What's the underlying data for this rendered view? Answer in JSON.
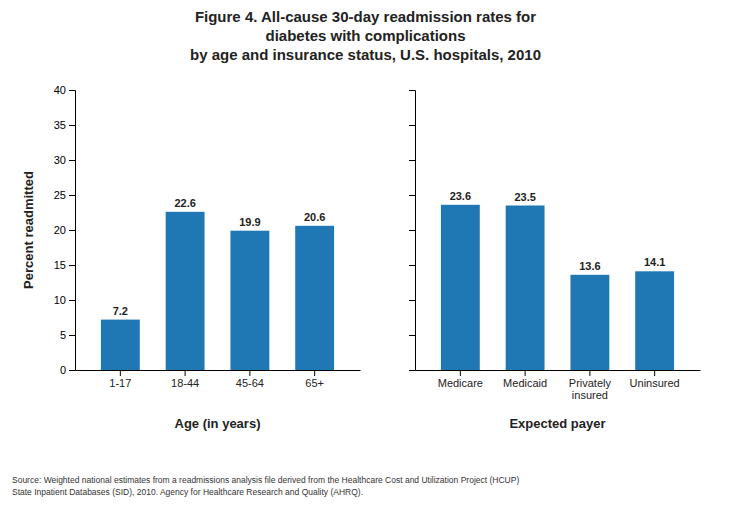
{
  "chart_data": [
    {
      "type": "bar",
      "title": "Figure 4. All-cause 30-day readmission rates for\ndiabetes with complications\nby age and insurance status, U.S. hospitals, 2010",
      "categories": [
        "1-17",
        "18-44",
        "45-64",
        "65+"
      ],
      "values": [
        7.2,
        22.6,
        19.9,
        20.6
      ],
      "ylabel": "Percent readmitted",
      "xlabel": "Age (in years)",
      "ylim": [
        0,
        40
      ],
      "yticks": [
        0,
        5,
        10,
        15,
        20,
        25,
        30,
        35,
        40
      ],
      "data_labels": true,
      "annotations": [
        "Source: Weighted national estimates from a readmissions analysis file derived from the Healthcare Cost and Utilization Project (HCUP)\nState Inpatient Databases (SID), 2010. Agency for Healthcare Research and Quality (AHRQ)."
      ]
    },
    {
      "type": "bar",
      "categories": [
        "Medicare",
        "Medicaid",
        "Privately\ninsured",
        "Uninsured"
      ],
      "values": [
        23.6,
        23.5,
        13.6,
        14.1
      ],
      "xlabel": "Expected payer",
      "ylim": [
        0,
        40
      ],
      "yticks": [
        0,
        5,
        10,
        15,
        20,
        25,
        30,
        35,
        40
      ],
      "data_labels": true,
      "tick_labels": "x"
    }
  ]
}
